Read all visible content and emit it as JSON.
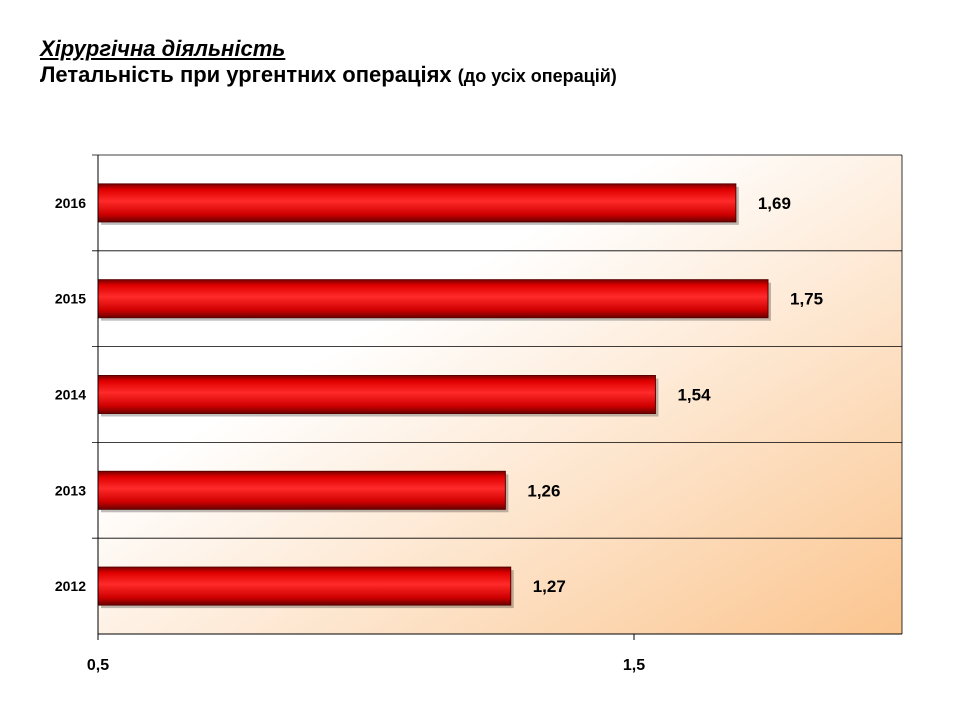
{
  "title": {
    "line1": "Хірургічна діяльність",
    "line2_main": "Летальність при  ургентних операціях",
    "line2_sub": "(до усіх операцій)"
  },
  "colors": {
    "bar": "#ff0000",
    "bar_dark": "#8b0000",
    "plot_bg_light": "#ffffff",
    "plot_bg_warm": "#fbc58f",
    "grid": "#000000"
  },
  "chart_data": {
    "type": "bar",
    "orientation": "horizontal",
    "categories": [
      "2016",
      "2015",
      "2014",
      "2013",
      "2012"
    ],
    "values": [
      1.69,
      1.75,
      1.54,
      1.26,
      1.27
    ],
    "value_labels": [
      "1,69",
      "1,75",
      "1,54",
      "1,26",
      "1,27"
    ],
    "xlim": [
      0.5,
      2.0
    ],
    "x_ticks": [
      0.5,
      1.5
    ],
    "x_tick_labels": [
      "0,5",
      "1,5"
    ],
    "grid": "horizontal category separators",
    "legend": "none"
  }
}
